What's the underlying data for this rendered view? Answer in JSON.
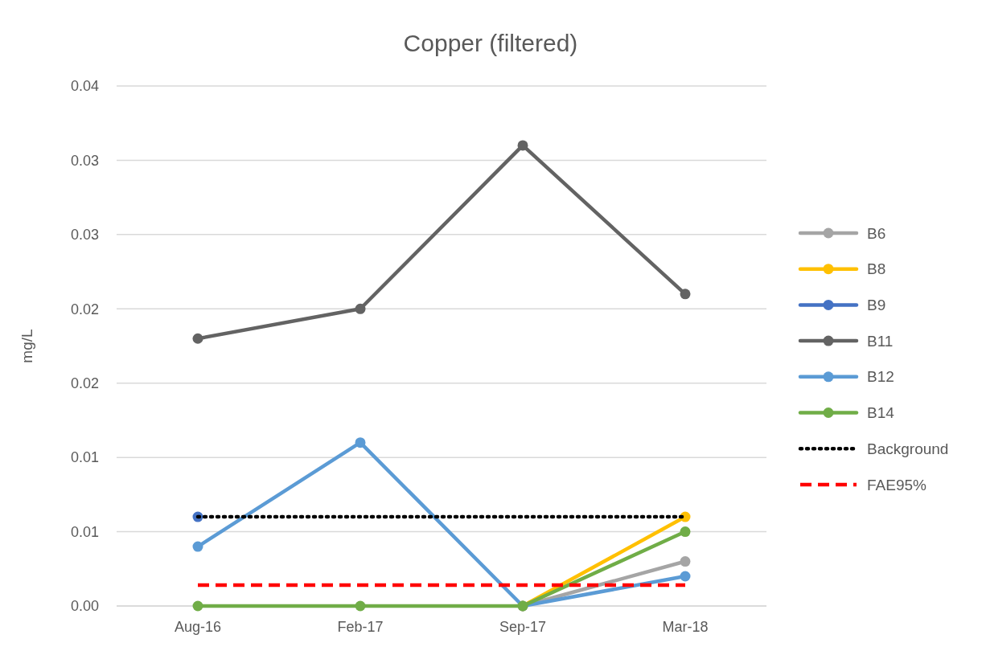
{
  "chart_data": {
    "type": "line",
    "title": "Copper (filtered)",
    "ylabel": "mg/L",
    "categories": [
      "Aug-16",
      "Feb-17",
      "Sep-17",
      "Mar-18"
    ],
    "ylim": [
      0,
      0.035
    ],
    "yticks": [
      {
        "value": 0,
        "label": "0.00"
      },
      {
        "value": 0.005,
        "label": "0.01"
      },
      {
        "value": 0.01,
        "label": "0.01"
      },
      {
        "value": 0.015,
        "label": "0.02"
      },
      {
        "value": 0.02,
        "label": "0.02"
      },
      {
        "value": 0.025,
        "label": "0.03"
      },
      {
        "value": 0.03,
        "label": "0.03"
      },
      {
        "value": 0.035,
        "label": "0.04"
      }
    ],
    "grid": "y",
    "legend": "right",
    "marker": "circle",
    "line_style": "solid",
    "series": [
      {
        "name": "B6",
        "color": "#a5a5a5",
        "values": [
          null,
          null,
          0,
          0.003
        ]
      },
      {
        "name": "B8",
        "color": "#ffc000",
        "values": [
          null,
          null,
          0,
          0.006
        ]
      },
      {
        "name": "B9",
        "color": "#4472c4",
        "values": [
          0.006,
          null,
          null,
          null
        ]
      },
      {
        "name": "B11",
        "color": "#636363",
        "values": [
          0.018,
          0.02,
          0.031,
          0.021
        ]
      },
      {
        "name": "B12",
        "color": "#5b9bd5",
        "values": [
          0.004,
          0.011,
          0,
          0.002
        ]
      },
      {
        "name": "B14",
        "color": "#70ad47",
        "values": [
          0,
          0,
          0,
          0.005
        ]
      },
      {
        "name": "Background",
        "color": "#000000",
        "values": [
          0.006,
          0.006,
          0.006,
          0.006
        ],
        "marker": "none",
        "line_style": "dotted"
      },
      {
        "name": "FAE95%",
        "color": "#ff0000",
        "values": [
          0.0014,
          0.0014,
          0.0014,
          0.0014
        ],
        "marker": "none",
        "line_style": "dashed"
      }
    ]
  }
}
